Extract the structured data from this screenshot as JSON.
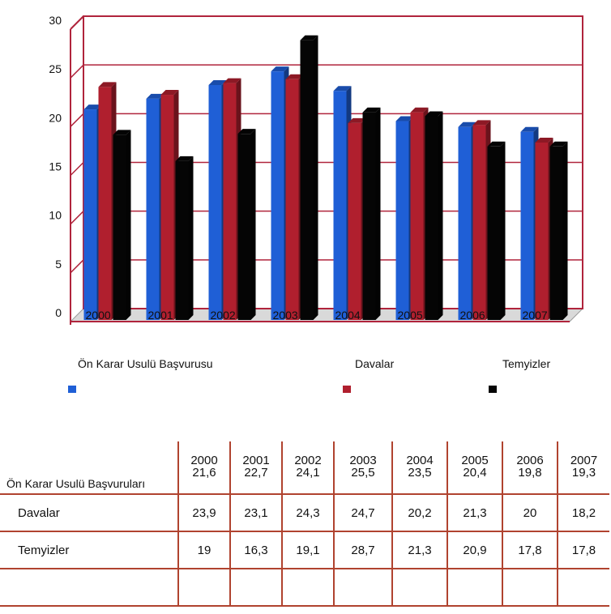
{
  "chart_data": {
    "type": "bar",
    "categories": [
      "2000",
      "2001",
      "2002",
      "2003",
      "2004",
      "2005",
      "2006",
      "2007"
    ],
    "series": [
      {
        "name": "Ön Karar Usulü Başvurusu",
        "values": [
          21.6,
          22.7,
          24.1,
          25.5,
          23.5,
          20.4,
          19.8,
          19.3
        ],
        "color": "#1f5fd6"
      },
      {
        "name": "Davalar",
        "values": [
          23.9,
          23.1,
          24.3,
          24.7,
          20.2,
          21.3,
          20,
          18.2
        ],
        "color": "#b01f2e"
      },
      {
        "name": "Temyizler",
        "values": [
          19,
          16.3,
          19.1,
          28.7,
          21.3,
          20.9,
          17.8,
          17.8
        ],
        "color": "#050505"
      }
    ],
    "y_ticks": [
      "0",
      "5",
      "10",
      "15",
      "20",
      "25",
      "30"
    ],
    "ylim": [
      0,
      30
    ],
    "grid": true,
    "grid_color": "#b0243c",
    "legend_placement": "bottom"
  },
  "table": {
    "header_row_label": "Ön Karar Usulü Başvuruları",
    "years": [
      "2000",
      "2001",
      "2002",
      "2003",
      "2004",
      "2005",
      "2006",
      "2007"
    ],
    "first_row_values": [
      "21,6",
      "22,7",
      "24,1",
      "25,5",
      "23,5",
      "20,4",
      "19,8",
      "19,3"
    ],
    "rows": [
      {
        "label": "Davalar",
        "values": [
          "23,9",
          "23,1",
          "24,3",
          "24,7",
          "20,2",
          "21,3",
          "20",
          "18,2"
        ]
      },
      {
        "label": "Temyizler",
        "values": [
          "19",
          "16,3",
          "19,1",
          "28,7",
          "21,3",
          "20,9",
          "17,8",
          "17,8"
        ]
      }
    ],
    "border_color": "#b0432f"
  }
}
